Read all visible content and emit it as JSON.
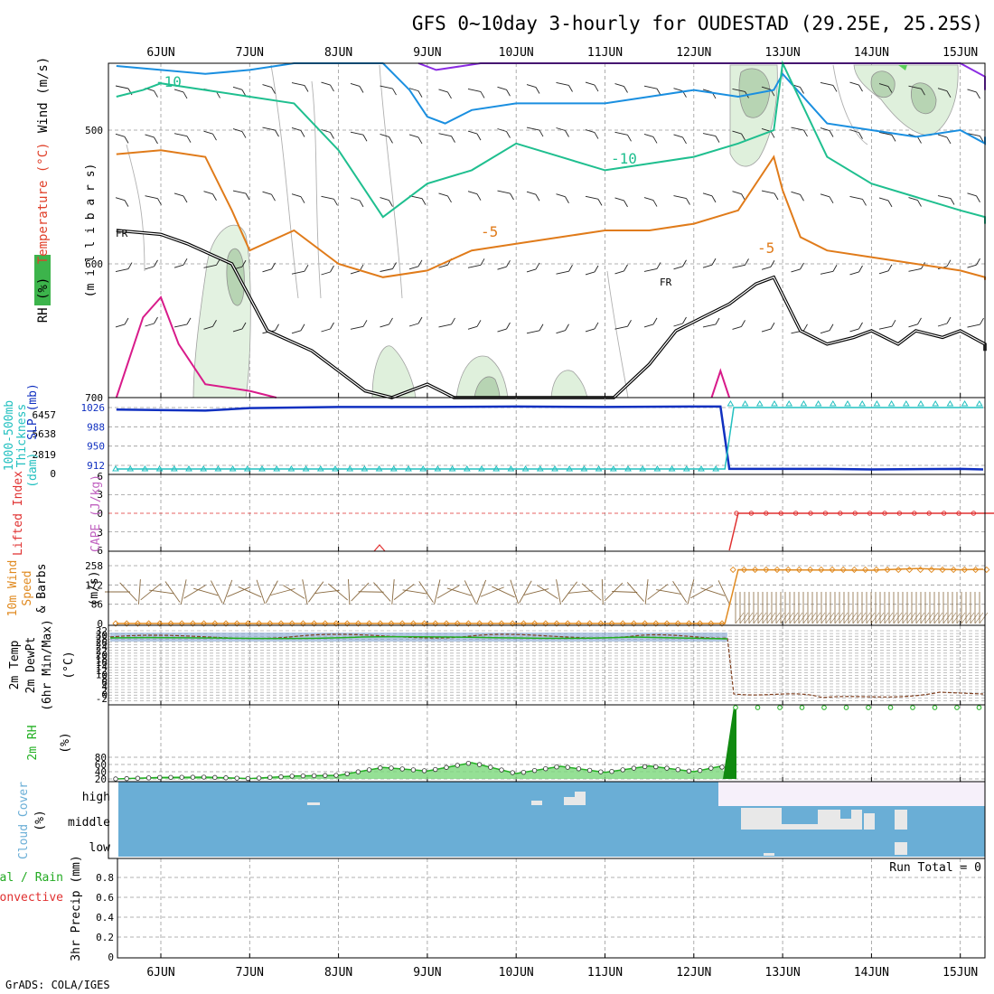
{
  "title": "GFS 0~10day 3-hourly for OUDESTAD (29.25E, 25.25S)",
  "credit": "GrADS: COLA/IGES",
  "dates": [
    "6JUN",
    "7JUN",
    "8JUN",
    "9JUN",
    "10JUN",
    "11JUN",
    "12JUN",
    "13JUN",
    "14JUN",
    "15JUN"
  ],
  "colors": {
    "rh": "#3cb44b",
    "temperature_orange": "#e07b1a",
    "temperature_teal": "#1fbf8f",
    "temperature_blue": "#1a8fe0",
    "temperature_purple": "#8a2be2",
    "freezing": "#000000",
    "slp": "#1030c0",
    "thickness": "#22c0c0",
    "lifted_index": "#e03030",
    "wind": "#e08a20",
    "rh2m": "#22b022",
    "cloud": "#6aaed6",
    "precip_rain": "#22aa22",
    "precip_conv": "#e03030"
  },
  "chart_data": [
    {
      "id": "upper_air",
      "type": "line",
      "ylabel_parts": [
        "RH (%)",
        "Temperature (°C)",
        "Wind (m/s)"
      ],
      "axis_unit": "(m i l l i b a r s)",
      "y_ticks": [
        500,
        600,
        700
      ],
      "ylim": [
        700,
        450
      ],
      "isotherm_labels": [
        "-10",
        "-10",
        "-5",
        "-5"
      ],
      "freezing_labels": [
        "FR",
        "FR"
      ],
      "series": [
        {
          "color": "purple",
          "x": [
            2.9,
            3.1,
            3.6,
            4.0,
            4.5,
            5.0,
            6.0,
            7.0,
            8.0,
            8.5,
            9.0,
            9.5,
            10.2
          ],
          "values": [
            445,
            455,
            450,
            445,
            440,
            438,
            440,
            440,
            440,
            445,
            450,
            460,
            470
          ]
        },
        {
          "color": "blue",
          "x": [
            -0.5,
            0,
            0.5,
            1.0,
            1.5,
            2.0,
            2.5,
            2.8,
            3.0,
            3.2,
            3.5,
            4.0,
            4.5,
            5.0,
            5.5,
            6.0,
            6.5,
            6.9,
            7.0,
            7.5,
            8.0,
            8.5,
            9.0,
            9.5,
            10.2
          ],
          "values": [
            452,
            455,
            458,
            455,
            450,
            445,
            450,
            470,
            490,
            495,
            485,
            480,
            480,
            480,
            475,
            470,
            475,
            470,
            458,
            495,
            500,
            505,
            500,
            510,
            505
          ]
        },
        {
          "color": "teal",
          "x": [
            -0.5,
            -0.2,
            0,
            0.5,
            1.0,
            1.5,
            2.0,
            2.5,
            3.0,
            3.5,
            4.0,
            4.5,
            5.0,
            5.5,
            6.0,
            6.5,
            6.9,
            7.0,
            7.5,
            8.0,
            8.5,
            9.0,
            9.5,
            10.2
          ],
          "values": [
            475,
            470,
            465,
            470,
            475,
            480,
            515,
            565,
            540,
            530,
            510,
            520,
            530,
            525,
            520,
            510,
            500,
            440,
            520,
            540,
            550,
            560,
            565,
            570
          ]
        },
        {
          "color": "orange",
          "x": [
            -0.5,
            0,
            0.5,
            0.8,
            1.0,
            1.5,
            2.0,
            2.5,
            3.0,
            3.5,
            4.0,
            4.5,
            5.0,
            5.5,
            6.0,
            6.5,
            6.9,
            7.0,
            7.2,
            7.5,
            8.0,
            8.5,
            9.0,
            9.5,
            10.2
          ],
          "values": [
            518,
            515,
            520,
            560,
            590,
            575,
            600,
            610,
            605,
            590,
            585,
            580,
            575,
            575,
            570,
            560,
            520,
            545,
            580,
            590,
            595,
            600,
            605,
            610,
            612
          ]
        },
        {
          "color": "magenta",
          "x": [
            -0.5,
            -0.2,
            0,
            0.2,
            0.5,
            1.0,
            1.3
          ],
          "values": [
            700,
            640,
            625,
            660,
            690,
            695,
            700
          ]
        },
        {
          "color": "magenta",
          "x": [
            6.2,
            6.3,
            6.4
          ],
          "values": [
            700,
            680,
            700
          ]
        },
        {
          "color": "black",
          "x": [
            -0.5,
            0,
            0.3,
            0.8,
            1.2,
            1.7,
            2.0,
            2.3,
            2.6,
            3.0,
            3.3,
            3.6,
            3.9,
            4.2,
            4.5,
            4.8,
            5.1,
            5.5,
            5.8,
            6.1,
            6.4,
            6.6,
            6.7,
            6.9,
            7.2,
            7.5,
            7.8,
            8.0,
            8.3,
            8.5,
            8.8,
            9.0,
            9.3,
            9.6,
            9.8,
            10.2
          ],
          "values": [
            575,
            578,
            585,
            600,
            650,
            665,
            680,
            695,
            700,
            690,
            700,
            700,
            700,
            700,
            700,
            700,
            700,
            675,
            650,
            640,
            630,
            620,
            615,
            610,
            650,
            660,
            655,
            650,
            660,
            650,
            655,
            650,
            660,
            660,
            665,
            665
          ]
        }
      ]
    },
    {
      "id": "slp_thickness",
      "type": "line",
      "left_label_lines": [
        "Thickness",
        "1000-500mb",
        "(dam)",
        "SLP (mb)"
      ],
      "y_ticks_thickness": [
        "6457",
        "5638",
        "2819",
        "0"
      ],
      "y_ticks_slp": [
        "1026",
        "988",
        "950",
        "912"
      ],
      "series": [
        {
          "name": "SLP (mb)",
          "x": [
            -0.5,
            0.5,
            1.0,
            2.0,
            3.0,
            4.0,
            5.0,
            6.0,
            6.3,
            6.4,
            7.5,
            8.0,
            9.0,
            10.2
          ],
          "values": [
            1022,
            1020,
            1025,
            1027,
            1027,
            1028,
            1027,
            1028,
            1028,
            905,
            905,
            904,
            905,
            904
          ]
        },
        {
          "name": "Thickness",
          "x": [
            -0.5,
            6.35,
            6.45,
            10.2
          ],
          "values": [
            0,
            0,
            6457,
            6457
          ]
        }
      ]
    },
    {
      "id": "stability",
      "type": "line",
      "left_label_lines": [
        "Lifted Index",
        "CAPE (J/kg)"
      ],
      "y_ticks": [
        "6",
        "3",
        "0",
        "3",
        "6"
      ],
      "series": [
        {
          "name": "Lifted Index",
          "x": [
            6.4,
            6.5,
            10.2
          ],
          "values": [
            -6,
            0,
            0
          ]
        }
      ]
    },
    {
      "id": "wind10m",
      "type": "line",
      "left_label_lines": [
        "10m Wind",
        "Speed",
        "& Barbs"
      ],
      "unit": "(m/s)",
      "y_ticks": [
        "258",
        "172",
        "86",
        "0"
      ],
      "series": [
        {
          "name": "10m Wind Speed",
          "x": [
            -0.5,
            6.35,
            6.5,
            8.0,
            8.5,
            9.0,
            10.2
          ],
          "values": [
            0,
            0,
            240,
            238,
            245,
            240,
            242
          ]
        }
      ]
    },
    {
      "id": "temp2m",
      "type": "line",
      "left_label_lines": [
        "2m Temp",
        "2m DewPt",
        "(6hr Min/Max)"
      ],
      "unit": "(°C)"
    },
    {
      "id": "rh2m",
      "type": "area",
      "left_label_lines": [
        "2m RH"
      ],
      "unit": "(%)",
      "y_ticks": [
        "80",
        "60",
        "40",
        "20"
      ],
      "series": [
        {
          "name": "2m RH",
          "x": [
            -0.5,
            0,
            0.5,
            1.0,
            1.5,
            2.0,
            2.5,
            3.0,
            3.5,
            4.0,
            4.5,
            5.0,
            5.5,
            6.0,
            6.3,
            6.45,
            6.5,
            10.2
          ],
          "values": [
            20,
            24,
            25,
            21,
            28,
            30,
            52,
            42,
            65,
            35,
            55,
            38,
            56,
            40,
            55,
            35,
            1000,
            1000
          ]
        }
      ]
    },
    {
      "id": "cloud",
      "type": "heatmap",
      "left_label_lines": [
        "Cloud Cover",
        "(%)"
      ],
      "rows": [
        "high",
        "middle",
        "low"
      ]
    },
    {
      "id": "precip",
      "type": "bar",
      "left_label_lines": [
        "Total / Rain",
        "Convective"
      ],
      "unit": "3hr Precip (mm)",
      "y_ticks": [
        "0",
        "0.2",
        "0.4",
        "0.6",
        "0.8"
      ],
      "run_total": "Run Total = 0",
      "values": []
    }
  ]
}
